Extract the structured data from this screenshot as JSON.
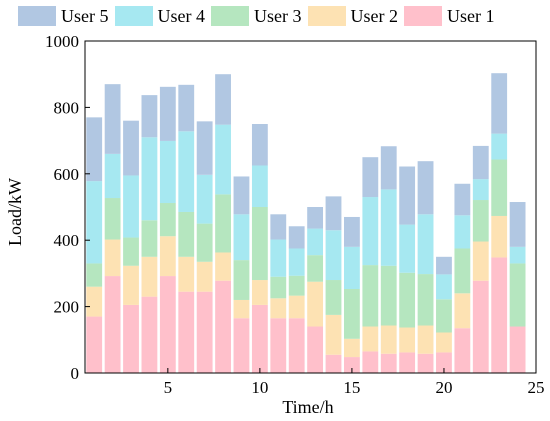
{
  "chart_data": {
    "type": "bar",
    "stacked": true,
    "xlabel": "Time/h",
    "ylabel": "Load/kW",
    "xlim": [
      0.5,
      25
    ],
    "ylim": [
      0,
      1000
    ],
    "xticks": [
      5,
      10,
      15,
      20,
      25
    ],
    "yticks": [
      0,
      200,
      400,
      600,
      800,
      1000
    ],
    "categories": [
      1,
      2,
      3,
      4,
      5,
      6,
      7,
      8,
      9,
      10,
      11,
      12,
      13,
      14,
      15,
      16,
      17,
      18,
      19,
      20,
      21,
      22,
      23,
      24
    ],
    "legend_position": "top",
    "legend_order": [
      "User 5",
      "User 4",
      "User 3",
      "User 2",
      "User 1"
    ],
    "series": [
      {
        "name": "User 1",
        "color": "#ffc0cb",
        "values": [
          170,
          292,
          205,
          230,
          292,
          245,
          245,
          278,
          165,
          205,
          165,
          165,
          140,
          55,
          48,
          65,
          58,
          62,
          58,
          62,
          135,
          278,
          348,
          140
        ]
      },
      {
        "name": "User 2",
        "color": "#fde2b3",
        "values": [
          90,
          110,
          118,
          120,
          120,
          105,
          90,
          85,
          55,
          75,
          60,
          68,
          135,
          120,
          55,
          75,
          85,
          75,
          85,
          60,
          105,
          118,
          125,
          0
        ]
      },
      {
        "name": "User 3",
        "color": "#b5e6bf",
        "values": [
          70,
          125,
          85,
          110,
          100,
          135,
          115,
          175,
          120,
          220,
          65,
          60,
          80,
          105,
          150,
          185,
          180,
          165,
          155,
          100,
          135,
          125,
          170,
          190
        ]
      },
      {
        "name": "User 4",
        "color": "#a6e8f1",
        "values": [
          248,
          133,
          187,
          250,
          187,
          243,
          147,
          210,
          138,
          125,
          112,
          82,
          80,
          150,
          127,
          205,
          230,
          145,
          180,
          75,
          100,
          63,
          78,
          50
        ]
      },
      {
        "name": "User 5",
        "color": "#b1c7e2",
        "values": [
          192,
          210,
          165,
          127,
          163,
          140,
          161,
          152,
          114,
          125,
          76,
          67,
          65,
          102,
          90,
          120,
          130,
          175,
          160,
          53,
          95,
          100,
          182,
          135
        ]
      }
    ]
  }
}
